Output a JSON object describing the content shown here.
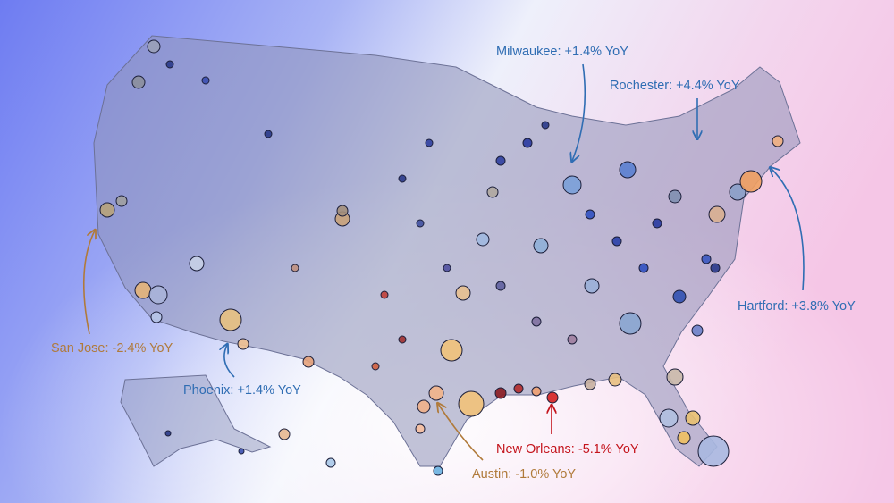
{
  "annotations": [
    {
      "label": "Milwaukee: +1.4% YoY"
    },
    {
      "label": "Rochester: +4.4% YoY"
    },
    {
      "label": "Hartford: +3.8% YoY"
    },
    {
      "label": "San Jose: -2.4% YoY"
    },
    {
      "label": "Phoenix: +1.4% YoY"
    },
    {
      "label": "New Orleans: -5.1% YoY"
    },
    {
      "label": "Austin: -1.0% YoY"
    }
  ]
}
